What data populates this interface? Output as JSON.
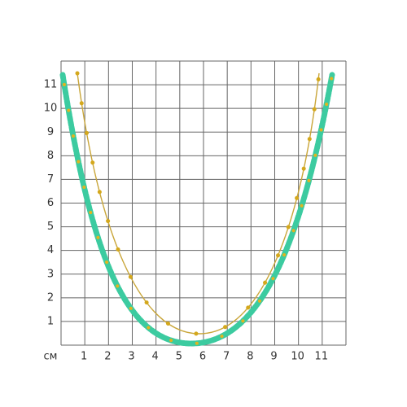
{
  "scale": {
    "y_labels": [
      "1",
      "2",
      "3",
      "4",
      "5",
      "6",
      "7",
      "8",
      "9",
      "10",
      "11"
    ],
    "x_labels": [
      "1",
      "2",
      "3",
      "4",
      "5",
      "6",
      "7",
      "8",
      "9",
      "10",
      "11"
    ],
    "unit": "см"
  }
}
